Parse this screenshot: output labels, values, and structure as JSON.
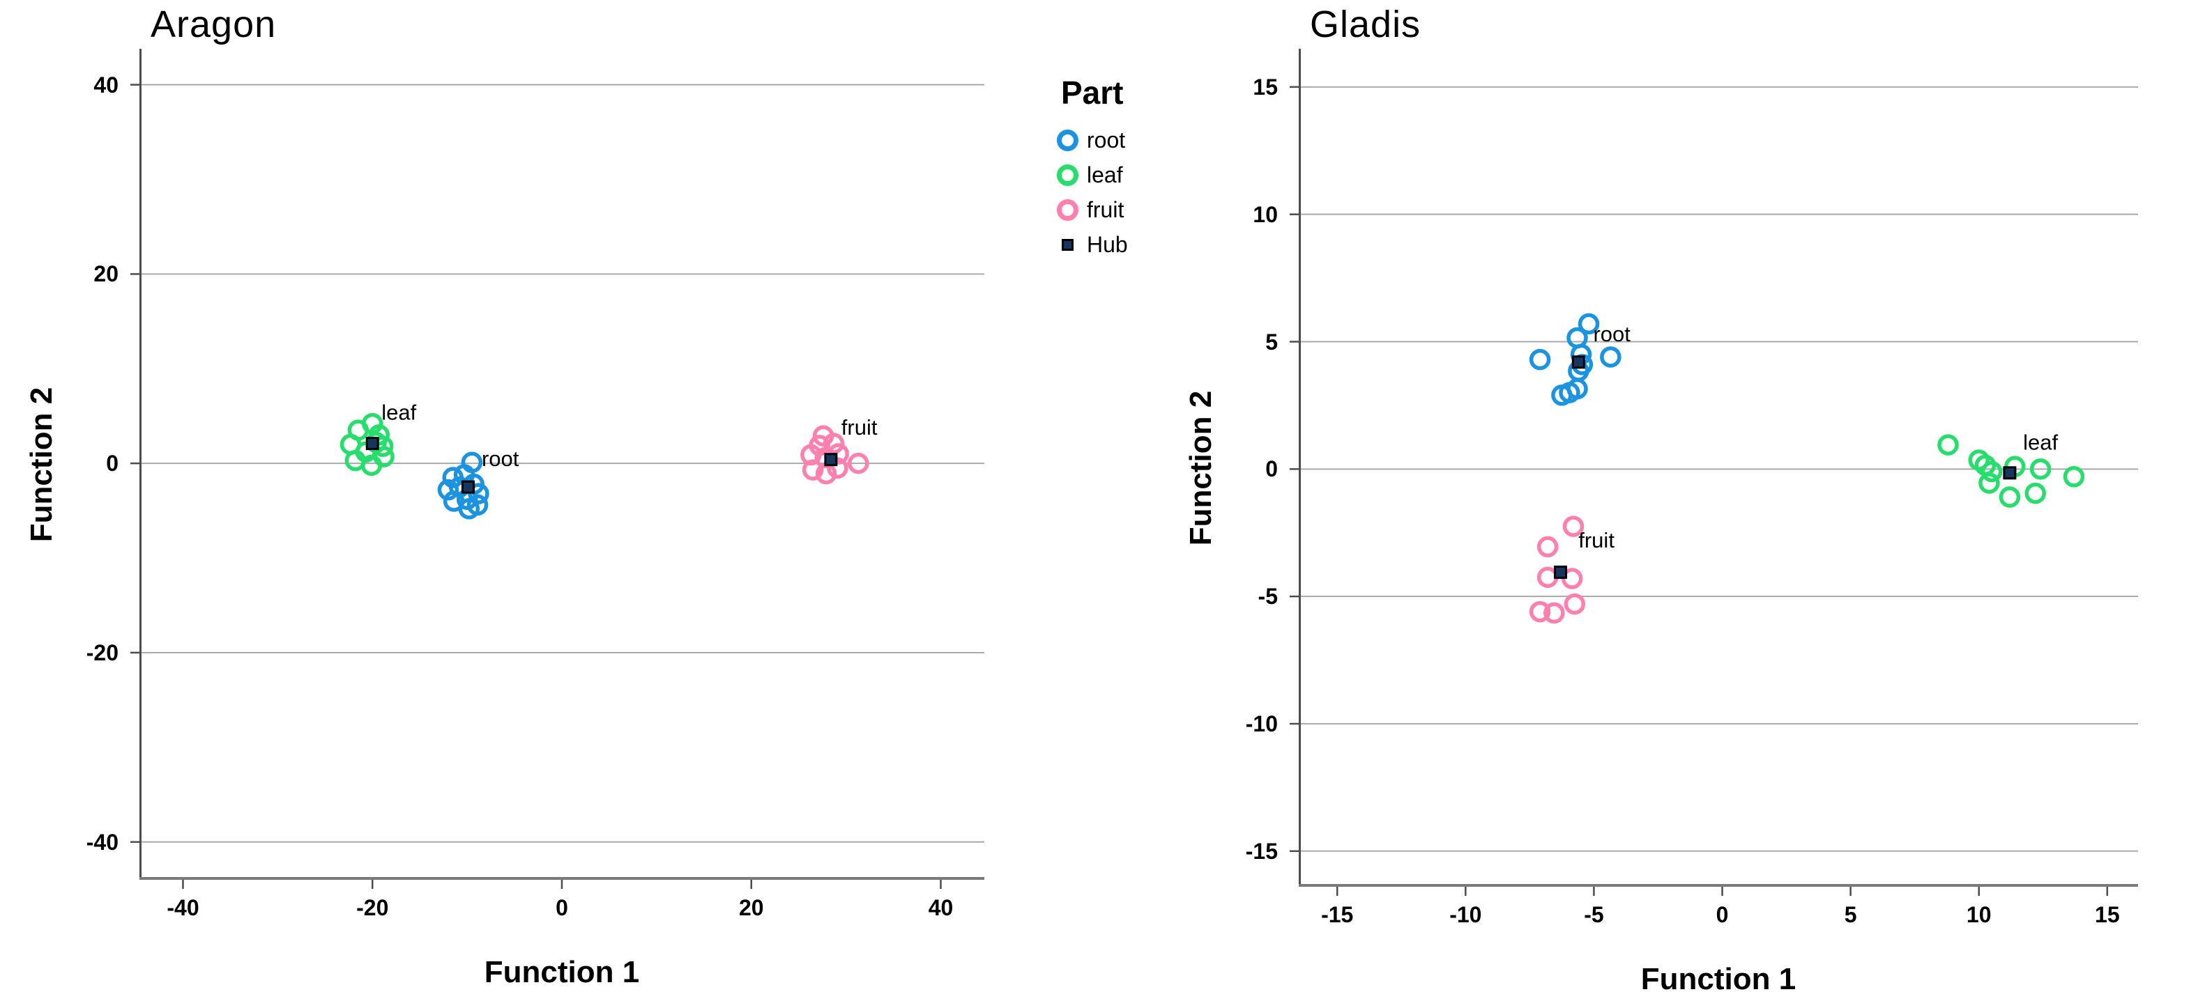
{
  "colors": {
    "root": "#1b93e0",
    "leaf": "#27de6d",
    "fruit": "#ff7fae",
    "hub_fill": "#17365d",
    "hub_border": "#000000",
    "gridline": "#a9a9a9",
    "axis_y": "#4c4c4c",
    "axis_x": "#7a7a7a",
    "text": "#000000"
  },
  "legend": {
    "title": "Part",
    "items": [
      {
        "label": "root",
        "marker": "ring",
        "color": "#1b93e0"
      },
      {
        "label": "leaf",
        "marker": "ring",
        "color": "#27de6d"
      },
      {
        "label": "fruit",
        "marker": "ring",
        "color": "#ff7fae"
      },
      {
        "label": "Hub",
        "marker": "square",
        "color": "#17365d"
      }
    ]
  },
  "chart_data": [
    {
      "type": "scatter",
      "title": "Aragon",
      "xlabel": "Function 1",
      "ylabel": "Function 2",
      "xlim": [
        -44.6,
        44.6
      ],
      "ylim": [
        -44.0,
        43.8
      ],
      "x_ticks": [
        -40,
        -20,
        0,
        20,
        40
      ],
      "y_ticks": [
        40,
        20,
        0,
        -20,
        -40
      ],
      "grid": "horizontal-only",
      "legend_position": "outside-right-top",
      "series": [
        {
          "name": "leaf",
          "color": "#27de6d",
          "points": [
            [
              -21.5,
              3.5
            ],
            [
              -20.0,
              4.2
            ],
            [
              -22.3,
              2.0
            ],
            [
              -19.3,
              3.0
            ],
            [
              -20.7,
              1.2
            ],
            [
              -18.9,
              1.8
            ],
            [
              -21.8,
              0.3
            ],
            [
              -20.1,
              -0.2
            ],
            [
              -18.8,
              0.7
            ],
            [
              -19.6,
              2.2
            ]
          ]
        },
        {
          "name": "root",
          "color": "#1b93e0",
          "points": [
            [
              -9.5,
              0.1
            ],
            [
              -11.5,
              -1.5
            ],
            [
              -10.3,
              -1.2
            ],
            [
              -12.0,
              -2.8
            ],
            [
              -10.8,
              -2.5
            ],
            [
              -9.3,
              -2.2
            ],
            [
              -11.4,
              -4.0
            ],
            [
              -10.0,
              -3.8
            ],
            [
              -8.8,
              -3.2
            ],
            [
              -9.8,
              -4.8
            ],
            [
              -8.9,
              -4.4
            ]
          ]
        },
        {
          "name": "fruit",
          "color": "#ff7fae",
          "points": [
            [
              27.6,
              2.9
            ],
            [
              27.2,
              1.9
            ],
            [
              28.7,
              2.1
            ],
            [
              26.3,
              0.9
            ],
            [
              27.8,
              0.6
            ],
            [
              29.2,
              1.0
            ],
            [
              31.3,
              0.0
            ],
            [
              26.5,
              -0.7
            ],
            [
              27.9,
              -1.1
            ],
            [
              29.1,
              -0.5
            ]
          ]
        }
      ],
      "hubs": [
        {
          "series": "leaf",
          "x": -20.0,
          "y": 2.1
        },
        {
          "series": "root",
          "x": -9.9,
          "y": -2.5
        },
        {
          "series": "fruit",
          "x": 28.4,
          "y": 0.4
        }
      ],
      "cluster_labels": [
        {
          "text": "leaf",
          "x": -17.2,
          "y": 5.4
        },
        {
          "text": "root",
          "x": -6.5,
          "y": 0.5
        },
        {
          "text": "fruit",
          "x": 31.4,
          "y": 3.8
        }
      ]
    },
    {
      "type": "scatter",
      "title": "Gladis",
      "xlabel": "Function 1",
      "ylabel": "Function 2",
      "xlim": [
        -16.5,
        16.2
      ],
      "ylim": [
        -16.4,
        16.5
      ],
      "x_ticks": [
        -15,
        -10,
        -5,
        0,
        5,
        10,
        15
      ],
      "y_ticks": [
        15,
        10,
        5,
        0,
        -5,
        -10,
        -15
      ],
      "grid": "horizontal-only",
      "series": [
        {
          "name": "root",
          "color": "#1b93e0",
          "points": [
            [
              -7.1,
              4.3
            ],
            [
              -5.2,
              5.7
            ],
            [
              -5.65,
              5.15
            ],
            [
              -5.5,
              4.5
            ],
            [
              -5.45,
              4.1
            ],
            [
              -5.6,
              3.85
            ],
            [
              -4.35,
              4.4
            ],
            [
              -6.25,
              2.9
            ],
            [
              -5.95,
              3.0
            ],
            [
              -5.65,
              3.15
            ]
          ]
        },
        {
          "name": "leaf",
          "color": "#27de6d",
          "points": [
            [
              8.8,
              0.95
            ],
            [
              10.0,
              0.35
            ],
            [
              10.25,
              0.15
            ],
            [
              10.5,
              -0.1
            ],
            [
              10.4,
              -0.55
            ],
            [
              11.4,
              0.1
            ],
            [
              12.4,
              0.0
            ],
            [
              11.2,
              -1.1
            ],
            [
              12.2,
              -0.95
            ],
            [
              13.7,
              -0.3
            ]
          ]
        },
        {
          "name": "fruit",
          "color": "#ff7fae",
          "points": [
            [
              -5.8,
              -2.25
            ],
            [
              -6.8,
              -3.05
            ],
            [
              -6.8,
              -4.25
            ],
            [
              -5.85,
              -4.3
            ],
            [
              -7.1,
              -5.6
            ],
            [
              -6.55,
              -5.65
            ],
            [
              -5.75,
              -5.3
            ]
          ]
        }
      ],
      "hubs": [
        {
          "series": "root",
          "x": -5.6,
          "y": 4.2
        },
        {
          "series": "leaf",
          "x": 11.2,
          "y": -0.15
        },
        {
          "series": "fruit",
          "x": -6.3,
          "y": -4.05
        }
      ],
      "cluster_labels": [
        {
          "text": "root",
          "x": -4.3,
          "y": 5.3
        },
        {
          "text": "leaf",
          "x": 12.4,
          "y": 1.05
        },
        {
          "text": "fruit",
          "x": -4.9,
          "y": -2.8
        }
      ]
    }
  ]
}
